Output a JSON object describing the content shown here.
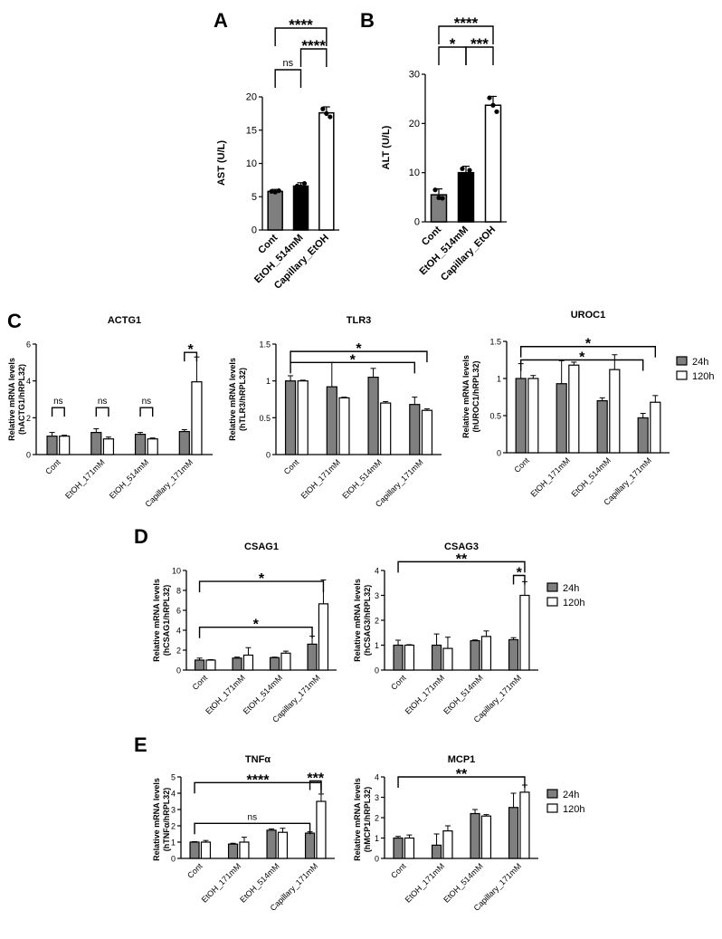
{
  "panel_labels": [
    "A",
    "B",
    "C",
    "D",
    "E"
  ],
  "legend": {
    "labels": [
      "24h",
      "120h"
    ]
  },
  "colors": {
    "gray": "#7f7f7f",
    "black": "#000000",
    "white": "#ffffff"
  },
  "chart_data": [
    {
      "panel": "A",
      "type": "bar",
      "title": "",
      "ylabel": "AST (U/L)",
      "ylim": [
        0,
        20
      ],
      "yticks": [
        0,
        5,
        10,
        15,
        20
      ],
      "categories": [
        "Cont",
        "EtOH_514mM",
        "Capillary_EtOH"
      ],
      "values": [
        5.8,
        6.6,
        17.6
      ],
      "errors": [
        0.3,
        0.5,
        0.9
      ],
      "points": [
        [
          5.8,
          5.9,
          5.7
        ],
        [
          6.6,
          7.0,
          6.5
        ],
        [
          18.2,
          17.0,
          17.5
        ]
      ],
      "bar_colors": [
        "gray",
        "black",
        "white"
      ],
      "comparisons": [
        {
          "from": 0,
          "to": 2,
          "label": "****",
          "level": 2
        },
        {
          "from": 1,
          "to": 2,
          "label": "****",
          "level": 1
        },
        {
          "from": 0,
          "to": 1,
          "label": "ns",
          "level": 0
        }
      ]
    },
    {
      "panel": "B",
      "type": "bar",
      "title": "",
      "ylabel": "ALT (U/L)",
      "ylim": [
        0,
        30
      ],
      "yticks": [
        0,
        10,
        20,
        30
      ],
      "categories": [
        "Cont",
        "EtOH_514mM",
        "Capillary_EtOH"
      ],
      "values": [
        5.5,
        10.0,
        23.7
      ],
      "errors": [
        1.2,
        1.3,
        1.8
      ],
      "points": [
        [
          6.5,
          4.8,
          4.9
        ],
        [
          10.8,
          10.5,
          9.5
        ],
        [
          25.2,
          22.4,
          23.7
        ]
      ],
      "bar_colors": [
        "gray",
        "black",
        "white"
      ],
      "comparisons": [
        {
          "from": 0,
          "to": 2,
          "label": "****",
          "level": 1
        },
        {
          "from": 0,
          "to": 1,
          "label": "*",
          "level": 0
        },
        {
          "from": 1,
          "to": 2,
          "label": "***",
          "level": 0
        }
      ]
    },
    {
      "panel": "C",
      "type": "bar",
      "title": "ACTG1",
      "ylabel": "Relative mRNA levels\n(hACTG1/hRPL32)",
      "ylim": [
        0,
        6
      ],
      "yticks": [
        0,
        2,
        4,
        6
      ],
      "categories": [
        "Cont",
        "EtOH_171mM",
        "EtOH_514mM",
        "Capillary_171mM"
      ],
      "series": [
        {
          "name": "24h",
          "values": [
            1.0,
            1.2,
            1.1,
            1.25
          ],
          "errors": [
            0.2,
            0.2,
            0.1,
            0.1
          ]
        },
        {
          "name": "120h",
          "values": [
            1.0,
            0.85,
            0.85,
            3.95
          ],
          "errors": [
            0.05,
            0.1,
            0.05,
            1.35
          ]
        }
      ],
      "comparisons": [
        {
          "type": "within",
          "index": 0,
          "label": "ns",
          "y": 2.55
        },
        {
          "type": "within",
          "index": 1,
          "label": "ns",
          "y": 2.55
        },
        {
          "type": "within",
          "index": 2,
          "label": "ns",
          "y": 2.55
        },
        {
          "type": "within",
          "index": 3,
          "label": "*",
          "y": 5.55
        }
      ]
    },
    {
      "panel": "C",
      "type": "bar",
      "title": "TLR3",
      "ylabel": "Relative mRNA levels\n(hTLR3/hRPL32)",
      "ylim": [
        0,
        1.5
      ],
      "yticks": [
        0,
        0.5,
        1.0,
        1.5
      ],
      "categories": [
        "Cont",
        "EtOH_171mM",
        "EtOH_514mM",
        "Capillary_171mM"
      ],
      "series": [
        {
          "name": "24h",
          "values": [
            1.0,
            0.92,
            1.05,
            0.68
          ],
          "errors": [
            0.07,
            0.33,
            0.12,
            0.1
          ]
        },
        {
          "name": "120h",
          "values": [
            1.0,
            0.77,
            0.7,
            0.6
          ],
          "errors": [
            0.01,
            0.01,
            0.02,
            0.02
          ]
        }
      ],
      "comparisons": [
        {
          "type": "span",
          "from": [
            0,
            0
          ],
          "to": [
            3,
            1
          ],
          "label": "*",
          "y": 1.4
        },
        {
          "type": "span",
          "from": [
            0,
            0
          ],
          "to": [
            3,
            0
          ],
          "label": "*",
          "y": 1.25
        }
      ]
    },
    {
      "panel": "C",
      "type": "bar",
      "title": "UROC1",
      "ylabel": "Relative mRNA levels\n(hUROC1/hRPL32)",
      "ylim": [
        0,
        1.5
      ],
      "yticks": [
        0,
        0.5,
        1.0,
        1.5
      ],
      "categories": [
        "Cont",
        "EtOH_171mM",
        "EtOH_514mM",
        "Capillary_171mM"
      ],
      "series": [
        {
          "name": "24h",
          "values": [
            1.0,
            0.93,
            0.7,
            0.47
          ],
          "errors": [
            0.2,
            0.31,
            0.04,
            0.06
          ]
        },
        {
          "name": "120h",
          "values": [
            1.0,
            1.18,
            1.12,
            0.68
          ],
          "errors": [
            0.04,
            0.04,
            0.2,
            0.09
          ]
        }
      ],
      "comparisons": [
        {
          "type": "span",
          "from": [
            0,
            0
          ],
          "to": [
            3,
            1
          ],
          "label": "*",
          "y": 1.43
        },
        {
          "type": "span",
          "from": [
            0,
            0
          ],
          "to": [
            3,
            0
          ],
          "label": "*",
          "y": 1.25
        }
      ]
    },
    {
      "panel": "D",
      "type": "bar",
      "title": "CSAG1",
      "ylabel": "Relative mRNA levels\n(hCSAG1/hRPL32)",
      "ylim": [
        0,
        10
      ],
      "yticks": [
        0,
        2,
        4,
        6,
        8,
        10
      ],
      "categories": [
        "Cont",
        "EtOH_171mM",
        "EtOH_514mM",
        "Capillary_171mM"
      ],
      "series": [
        {
          "name": "24h",
          "values": [
            1.0,
            1.2,
            1.25,
            2.6
          ],
          "errors": [
            0.2,
            0.1,
            0.05,
            0.8
          ]
        },
        {
          "name": "120h",
          "values": [
            1.0,
            1.5,
            1.7,
            6.65
          ],
          "errors": [
            0.05,
            0.75,
            0.2,
            2.4
          ]
        }
      ],
      "comparisons": [
        {
          "type": "span",
          "from": [
            0,
            0
          ],
          "to": [
            3,
            1
          ],
          "label": "*",
          "y": 8.9
        },
        {
          "type": "span",
          "from": [
            0,
            0
          ],
          "to": [
            3,
            0
          ],
          "label": "*",
          "y": 4.3
        }
      ]
    },
    {
      "panel": "D",
      "type": "bar",
      "title": "CSAG3",
      "ylabel": "Relative mRNA levels\n(hCSAG3/hRPL32)",
      "ylim": [
        0,
        4
      ],
      "yticks": [
        0,
        1,
        2,
        3,
        4
      ],
      "categories": [
        "Cont",
        "EtOH_171mM",
        "EtOH_514mM",
        "Capillary_171mM"
      ],
      "series": [
        {
          "name": "24h",
          "values": [
            1.0,
            1.0,
            1.18,
            1.22
          ],
          "errors": [
            0.2,
            0.45,
            0.03,
            0.08
          ]
        },
        {
          "name": "120h",
          "values": [
            1.0,
            0.87,
            1.35,
            3.0
          ],
          "errors": [
            0.02,
            0.45,
            0.22,
            0.55
          ]
        }
      ],
      "comparisons": [
        {
          "type": "span",
          "from": [
            0,
            0
          ],
          "to": [
            3,
            1
          ],
          "label": "**",
          "y": 4.35
        },
        {
          "type": "within",
          "index": 3,
          "label": "*",
          "y": 3.8
        }
      ]
    },
    {
      "panel": "E",
      "type": "bar",
      "title": "TNFα",
      "ylabel": "Relative mRNA levels\n(hTNFα/hRPL32)",
      "ylim": [
        0,
        5
      ],
      "yticks": [
        0,
        1,
        2,
        3,
        4,
        5
      ],
      "categories": [
        "Cont",
        "EtOH_171mM",
        "EtOH_514mM",
        "Capillary_171mM"
      ],
      "series": [
        {
          "name": "24h",
          "values": [
            1.0,
            0.88,
            1.73,
            1.55
          ],
          "errors": [
            0.03,
            0.05,
            0.08,
            0.08
          ]
        },
        {
          "name": "120h",
          "values": [
            1.0,
            1.0,
            1.6,
            3.5
          ],
          "errors": [
            0.1,
            0.3,
            0.25,
            0.45
          ]
        }
      ],
      "comparisons": [
        {
          "type": "span",
          "from": [
            0,
            0
          ],
          "to": [
            3,
            1
          ],
          "label": "****",
          "y": 4.65
        },
        {
          "type": "span",
          "from": [
            0,
            0
          ],
          "to": [
            3,
            0
          ],
          "label": "ns",
          "y": 2.15
        },
        {
          "type": "within",
          "index": 3,
          "label": "***",
          "y": 4.75
        }
      ]
    },
    {
      "panel": "E",
      "type": "bar",
      "title": "MCP1",
      "ylabel": "Relative mRNA levels\n(hMCP1/hRPL32)",
      "ylim": [
        0,
        4
      ],
      "yticks": [
        0,
        1,
        2,
        3,
        4
      ],
      "categories": [
        "Cont",
        "EtOH_171mM",
        "EtOH_514mM",
        "Capillary_171mM"
      ],
      "series": [
        {
          "name": "24h",
          "values": [
            1.0,
            0.65,
            2.2,
            2.5
          ],
          "errors": [
            0.08,
            0.55,
            0.2,
            0.7
          ]
        },
        {
          "name": "120h",
          "values": [
            1.0,
            1.35,
            2.08,
            3.25
          ],
          "errors": [
            0.15,
            0.25,
            0.07,
            0.35
          ]
        }
      ],
      "comparisons": [
        {
          "type": "span",
          "from": [
            0,
            0
          ],
          "to": [
            3,
            1
          ],
          "label": "**",
          "y": 4.0
        }
      ]
    }
  ]
}
